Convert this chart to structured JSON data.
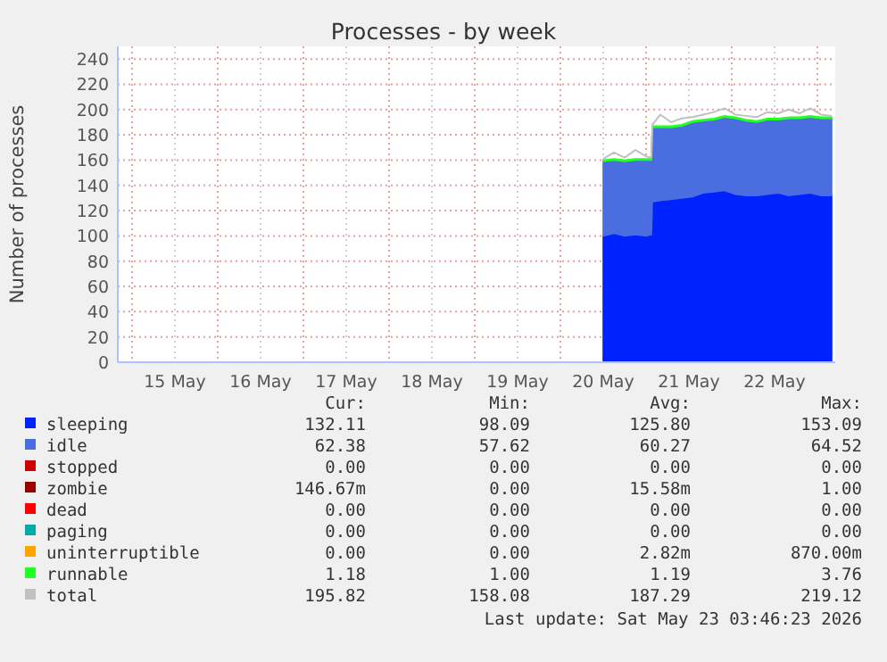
{
  "chart_data": {
    "type": "area",
    "stacked": true,
    "title": "Processes - by week",
    "ylabel": "Number of processes",
    "x": [
      "2026-05-20T12:00",
      "2026-05-20T15:00",
      "2026-05-20T18:00",
      "2026-05-20T21:00",
      "2026-05-21T00:00",
      "2026-05-21T01:30",
      "2026-05-21T01:45",
      "2026-05-21T04:00",
      "2026-05-21T07:00",
      "2026-05-21T10:00",
      "2026-05-21T13:00",
      "2026-05-21T16:00",
      "2026-05-21T19:00",
      "2026-05-21T22:00",
      "2026-05-22T01:00",
      "2026-05-22T04:00",
      "2026-05-22T07:00",
      "2026-05-22T10:00",
      "2026-05-22T13:00",
      "2026-05-22T16:00",
      "2026-05-22T19:00",
      "2026-05-22T22:00",
      "2026-05-23T01:00",
      "2026-05-23T04:00"
    ],
    "series": [
      {
        "name": "sleeping",
        "color": "#0022ff",
        "values": [
          100,
          102,
          100,
          101,
          100,
          101,
          127,
          128,
          129,
          130,
          131,
          134,
          135,
          136,
          133,
          132,
          132,
          133,
          134,
          132,
          133,
          134,
          132,
          132
        ]
      },
      {
        "name": "idle",
        "color": "#4a6ee0",
        "values": [
          59,
          58,
          59,
          59,
          60,
          59,
          59,
          58,
          57,
          57,
          59,
          57,
          57,
          58,
          60,
          59,
          58,
          59,
          58,
          61,
          60,
          60,
          61,
          61
        ]
      },
      {
        "name": "stopped",
        "color": "#cc0000",
        "values": [
          null,
          null,
          null,
          null,
          null,
          null,
          null,
          null,
          null,
          null,
          null,
          null,
          null,
          null,
          null,
          null,
          null,
          null,
          null,
          null,
          null,
          null,
          null,
          null
        ]
      },
      {
        "name": "zombie",
        "color": "#990000",
        "values": [
          null,
          null,
          null,
          null,
          null,
          null,
          null,
          null,
          null,
          null,
          null,
          null,
          null,
          null,
          null,
          null,
          null,
          null,
          null,
          null,
          null,
          null,
          null,
          null
        ]
      },
      {
        "name": "dead",
        "color": "#ff0000",
        "values": [
          null,
          null,
          null,
          null,
          null,
          null,
          null,
          null,
          null,
          null,
          null,
          null,
          null,
          null,
          null,
          null,
          null,
          null,
          null,
          null,
          null,
          null,
          null,
          null
        ]
      },
      {
        "name": "paging",
        "color": "#00aaaa",
        "values": [
          null,
          null,
          null,
          null,
          null,
          null,
          null,
          null,
          null,
          null,
          null,
          null,
          null,
          null,
          null,
          null,
          null,
          null,
          null,
          null,
          null,
          null,
          null,
          null
        ]
      },
      {
        "name": "uninterruptible",
        "color": "#ffa500",
        "values": [
          null,
          null,
          null,
          null,
          null,
          null,
          null,
          null,
          null,
          null,
          null,
          null,
          null,
          null,
          null,
          null,
          null,
          null,
          null,
          null,
          null,
          null,
          null,
          null
        ]
      },
      {
        "name": "runnable",
        "color": "#22ff22",
        "values": [
          1,
          1,
          1,
          1,
          1,
          1,
          1,
          1,
          1,
          1,
          1,
          1,
          1,
          1,
          1,
          1,
          1,
          1,
          1,
          1,
          1,
          1,
          1,
          1
        ]
      },
      {
        "name": "total",
        "color": "#c0c0c0",
        "type": "line",
        "values": [
          161,
          166,
          162,
          168,
          163,
          162,
          188,
          196,
          190,
          193,
          194,
          196,
          198,
          201,
          196,
          195,
          194,
          198,
          197,
          200,
          197,
          201,
          196,
          195
        ]
      }
    ],
    "xlim": [
      "2026-05-14T20:00",
      "2026-05-23T05:00"
    ],
    "xticks": [
      {
        "value": "2026-05-15T00:00",
        "label": null
      },
      {
        "value": "2026-05-15T12:00",
        "label": "15 May"
      },
      {
        "value": "2026-05-16T00:00",
        "label": null
      },
      {
        "value": "2026-05-16T12:00",
        "label": "16 May"
      },
      {
        "value": "2026-05-17T00:00",
        "label": null
      },
      {
        "value": "2026-05-17T12:00",
        "label": "17 May"
      },
      {
        "value": "2026-05-18T00:00",
        "label": null
      },
      {
        "value": "2026-05-18T12:00",
        "label": "18 May"
      },
      {
        "value": "2026-05-19T00:00",
        "label": null
      },
      {
        "value": "2026-05-19T12:00",
        "label": "19 May"
      },
      {
        "value": "2026-05-20T00:00",
        "label": null
      },
      {
        "value": "2026-05-20T12:00",
        "label": "20 May"
      },
      {
        "value": "2026-05-21T00:00",
        "label": null
      },
      {
        "value": "2026-05-21T12:00",
        "label": "21 May"
      },
      {
        "value": "2026-05-22T00:00",
        "label": null
      },
      {
        "value": "2026-05-22T12:00",
        "label": "22 May"
      },
      {
        "value": "2026-05-23T00:00",
        "label": null
      }
    ],
    "ylim": [
      0,
      250
    ],
    "yticks": [
      0,
      20,
      40,
      60,
      80,
      100,
      120,
      140,
      160,
      180,
      200,
      220,
      240
    ],
    "grid": true,
    "legend": "bottom",
    "marker": "none",
    "annotations": [
      "Cur:",
      "Min:",
      "Avg:",
      "Max:",
      "132.11",
      "98.09",
      "125.80",
      "153.09",
      "62.38",
      "57.62",
      "60.27",
      "64.52",
      "0.00",
      "0.00",
      "0.00",
      "0.00",
      "146.67m",
      "0.00",
      "15.58m",
      "1.00",
      "0.00",
      "0.00",
      "0.00",
      "0.00",
      "0.00",
      "0.00",
      "0.00",
      "0.00",
      "0.00",
      "0.00",
      "2.82m",
      "870.00m",
      "1.18",
      "1.00",
      "1.19",
      "3.76",
      "195.82",
      "158.08",
      "187.29",
      "219.12",
      "Last update: Sat May 23 03:46:23 2026"
    ]
  }
}
